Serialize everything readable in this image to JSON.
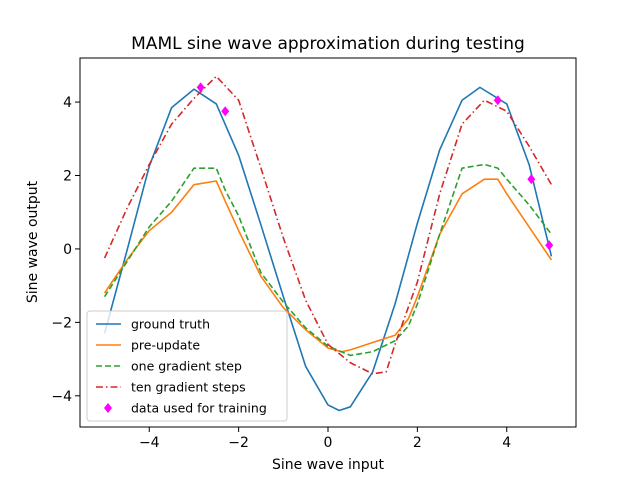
{
  "chart_data": {
    "type": "line",
    "title": "MAML sine wave approximation during testing",
    "xlabel": "Sine wave input",
    "ylabel": "Sine wave output",
    "xlim": [
      -5.55,
      5.55
    ],
    "ylim": [
      -4.85,
      5.2
    ],
    "xticks": [
      -4,
      -2,
      0,
      2,
      4
    ],
    "yticks": [
      -4,
      -2,
      0,
      2,
      4
    ],
    "xtick_labels": [
      "−4",
      "−2",
      "0",
      "2",
      "4"
    ],
    "ytick_labels": [
      "−4",
      "−2",
      "0",
      "2",
      "4"
    ],
    "grid": false,
    "legend_position": "lower-left",
    "series": [
      {
        "name": "ground truth",
        "color": "#1f77b4",
        "style": "solid",
        "x": [
          -5.0,
          -4.5,
          -4.0,
          -3.5,
          -3.0,
          -2.5,
          -2.0,
          -1.5,
          -1.0,
          -0.5,
          0.0,
          0.25,
          0.5,
          1.0,
          1.5,
          2.0,
          2.5,
          3.0,
          3.4,
          4.0,
          4.5,
          5.0
        ],
        "y": [
          -2.3,
          -0.05,
          2.25,
          3.85,
          4.35,
          3.95,
          2.55,
          0.65,
          -1.3,
          -3.2,
          -4.25,
          -4.4,
          -4.3,
          -3.35,
          -1.5,
          0.7,
          2.7,
          4.05,
          4.4,
          3.95,
          2.3,
          -0.2
        ]
      },
      {
        "name": "pre-update",
        "color": "#ff7f0e",
        "style": "solid",
        "x": [
          -5.0,
          -4.5,
          -4.0,
          -3.5,
          -3.0,
          -2.5,
          -2.3,
          -2.0,
          -1.5,
          -1.0,
          -0.5,
          0.0,
          0.3,
          0.5,
          1.0,
          1.5,
          1.8,
          2.0,
          2.5,
          3.0,
          3.5,
          3.8,
          4.0,
          4.5,
          5.0
        ],
        "y": [
          -1.2,
          -0.3,
          0.5,
          1.0,
          1.75,
          1.85,
          1.3,
          0.5,
          -0.75,
          -1.6,
          -2.2,
          -2.7,
          -2.8,
          -2.75,
          -2.55,
          -2.35,
          -1.9,
          -1.3,
          0.4,
          1.5,
          1.9,
          1.9,
          1.5,
          0.6,
          -0.3
        ]
      },
      {
        "name": "one gradient step",
        "color": "#2ca02c",
        "style": "dashed",
        "x": [
          -5.0,
          -4.5,
          -4.0,
          -3.5,
          -3.0,
          -2.75,
          -2.5,
          -2.3,
          -2.0,
          -1.5,
          -1.0,
          -0.5,
          0.0,
          0.5,
          1.0,
          1.5,
          1.8,
          2.0,
          2.5,
          3.0,
          3.5,
          3.8,
          4.0,
          4.5,
          5.0
        ],
        "y": [
          -1.3,
          -0.35,
          0.6,
          1.3,
          2.2,
          2.2,
          2.2,
          1.6,
          0.9,
          -0.65,
          -1.45,
          -2.15,
          -2.65,
          -2.9,
          -2.8,
          -2.5,
          -2.1,
          -1.5,
          0.4,
          2.2,
          2.3,
          2.2,
          1.9,
          1.2,
          0.4
        ]
      },
      {
        "name": "ten gradient steps",
        "color": "#d62728",
        "style": "dashdot",
        "x": [
          -5.0,
          -4.5,
          -4.0,
          -3.5,
          -3.0,
          -2.5,
          -2.0,
          -1.5,
          -1.0,
          -0.5,
          0.0,
          0.5,
          1.0,
          1.3,
          1.5,
          2.0,
          2.5,
          3.0,
          3.5,
          4.0,
          4.5,
          5.0
        ],
        "y": [
          -0.25,
          1.1,
          2.3,
          3.4,
          4.1,
          4.7,
          4.05,
          2.2,
          0.3,
          -1.4,
          -2.6,
          -3.1,
          -3.4,
          -3.35,
          -2.6,
          -0.9,
          1.5,
          3.4,
          4.05,
          3.75,
          2.8,
          1.75
        ]
      },
      {
        "name": "data used for training",
        "color": "#ff00ff",
        "style": "markers",
        "marker": "diamond",
        "x": [
          -2.85,
          -2.3,
          3.8,
          4.55,
          4.95
        ],
        "y": [
          4.4,
          3.75,
          4.05,
          1.9,
          0.1
        ]
      }
    ]
  }
}
